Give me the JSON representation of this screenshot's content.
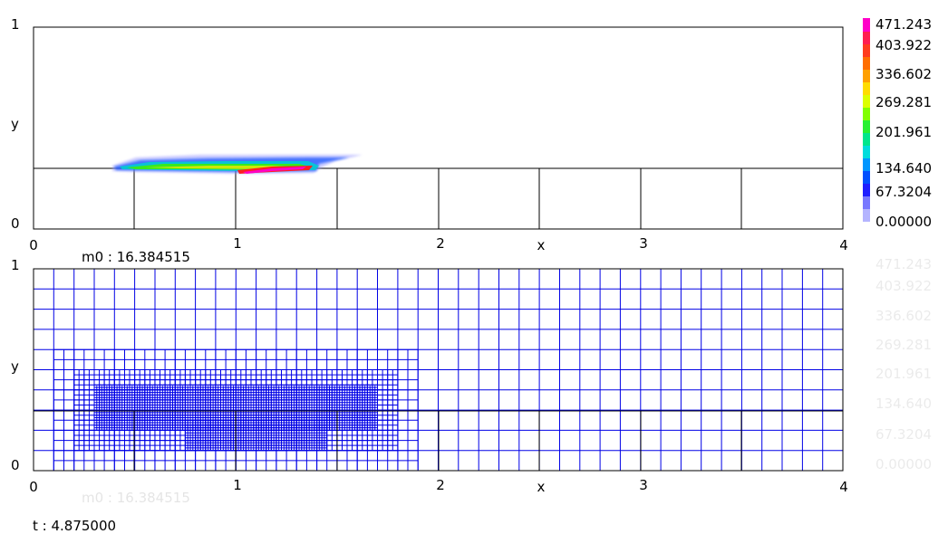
{
  "chart_data": [
    {
      "type": "heatmap",
      "xlabel": "x",
      "ylabel": "y",
      "xlim": [
        0,
        4
      ],
      "ylim": [
        0,
        1
      ],
      "x_ticks": [
        "0",
        "1",
        "2",
        "3",
        "4"
      ],
      "y_ticks": [
        "0",
        "1"
      ],
      "grid": "coarse black cell lines at x = 0.5, 1, 1.5, 2, 2.5, 3, 3.5 below y = 0.3; horizontal line at y = 0.3",
      "annotation": "m0 : 16.384515",
      "colorbar": {
        "values": [
          "471.243",
          "403.922",
          "336.602",
          "269.281",
          "201.961",
          "134.640",
          "67.3204",
          "0.00000"
        ],
        "colors": [
          "#ff00c8",
          "#ff1e1e",
          "#ff8c00",
          "#ffe600",
          "#50ff00",
          "#00e6c8",
          "#0050ff",
          "#b4b4ff"
        ],
        "placement": "right"
      },
      "field_region": {
        "x": [
          0.38,
          1.65
        ],
        "y": [
          0.27,
          0.37
        ],
        "peak": {
          "x": [
            1.0,
            1.4
          ],
          "y": [
            0.27,
            0.3
          ]
        }
      }
    },
    {
      "type": "heatmap",
      "xlabel": "x",
      "ylabel": "y",
      "xlim": [
        0,
        4
      ],
      "ylim": [
        0,
        1
      ],
      "x_ticks": [
        "0",
        "1",
        "2",
        "3",
        "4"
      ],
      "y_ticks": [
        "0",
        "1"
      ],
      "grid": "adaptive mesh, base cell 0.1 x 0.1, refined near x = 0.1 to 1.9",
      "annotation": "m0 : 16.384515",
      "colorbar": {
        "values": [
          "471.243",
          "403.922",
          "336.602",
          "269.281",
          "201.961",
          "134.640",
          "67.3204",
          "0.00000"
        ],
        "placement": "right",
        "faded": true
      }
    }
  ],
  "time_label": "t : 4.875000",
  "mesh_color": "#0000e6"
}
